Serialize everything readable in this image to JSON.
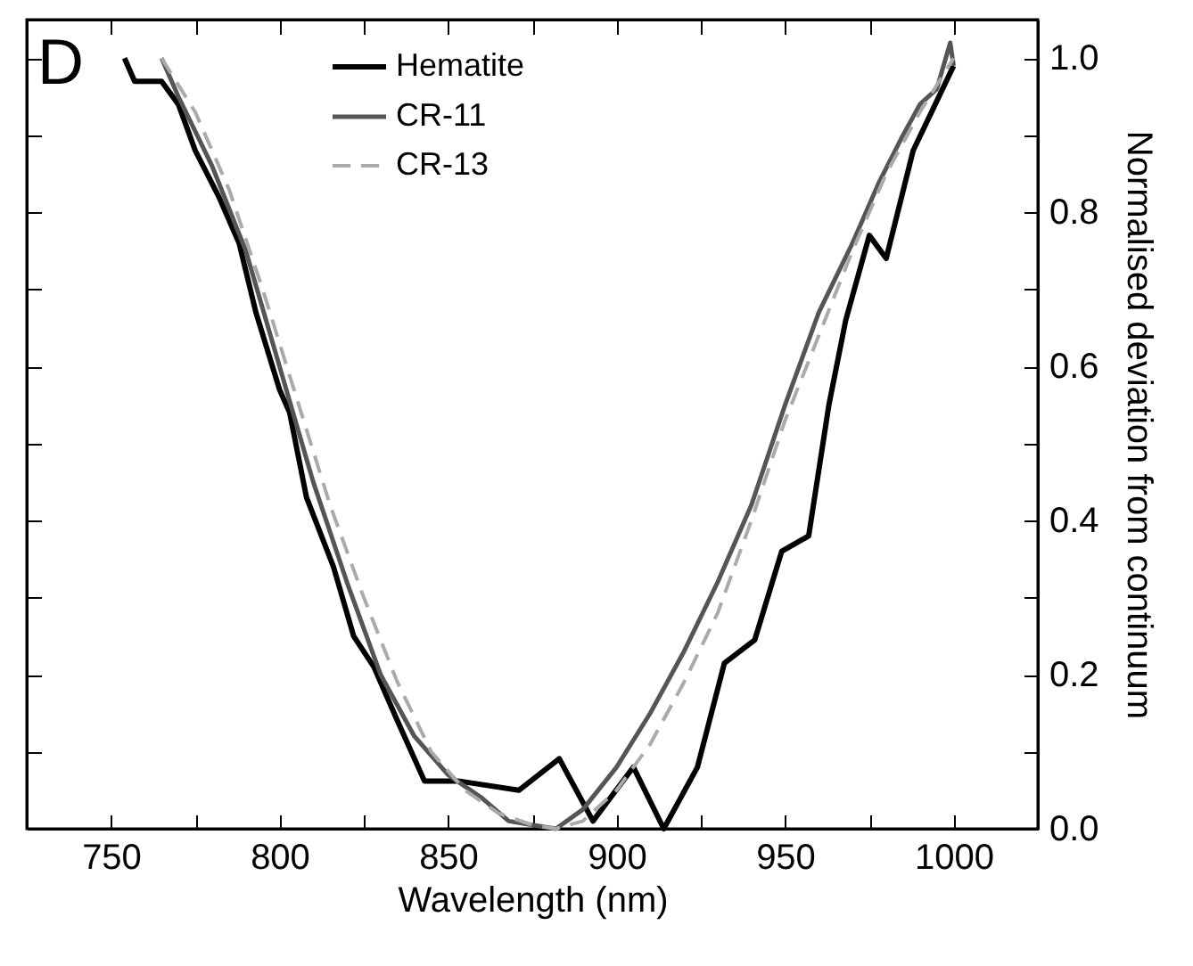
{
  "chart_data": {
    "type": "line",
    "xlabel": "Wavelength (nm)",
    "ylabel": "Normalised deviation from continuum",
    "annotations": [
      "D"
    ],
    "xlim": [
      725,
      1025
    ],
    "ylim": [
      0,
      1.05
    ],
    "xticks": [
      750,
      {
        "value": 775,
        "label": null
      },
      800,
      {
        "value": 825,
        "label": null
      },
      850,
      {
        "value": 875,
        "label": null
      },
      900,
      {
        "value": 925,
        "label": null
      },
      950,
      {
        "value": 975,
        "label": null
      },
      1000
    ],
    "yticks": [
      {
        "value": 0,
        "label": "0.0"
      },
      {
        "value": 0.1,
        "label": null
      },
      0.2,
      {
        "value": 0.3,
        "label": null
      },
      0.4,
      {
        "value": 0.5,
        "label": null
      },
      0.6,
      {
        "value": 0.7,
        "label": null
      },
      0.8,
      {
        "value": 0.9,
        "label": null
      },
      {
        "value": 1,
        "label": "1.0"
      }
    ],
    "legend": "top",
    "marker": "none",
    "series": [
      {
        "name": "Hematite",
        "color": "#000000",
        "line_style": "solid",
        "x": [
          754,
          757,
          765,
          770,
          775,
          782,
          788,
          793,
          800,
          803,
          808,
          816,
          822,
          828,
          835,
          843,
          853,
          871,
          883,
          893,
          905,
          914,
          924,
          932,
          941,
          949,
          957,
          963,
          968,
          975,
          980,
          988,
          1000
        ],
        "values": [
          1.0,
          0.97,
          0.97,
          0.94,
          0.88,
          0.82,
          0.76,
          0.67,
          0.57,
          0.54,
          0.43,
          0.34,
          0.25,
          0.21,
          0.14,
          0.062,
          0.062,
          0.05,
          0.091,
          0.01,
          0.08,
          0.0,
          0.08,
          0.215,
          0.245,
          0.36,
          0.38,
          0.55,
          0.66,
          0.77,
          0.74,
          0.88,
          0.99
        ]
      },
      {
        "name": "CR-11",
        "color": "#555555",
        "line_style": "solid",
        "x": [
          765,
          770,
          780,
          790,
          800,
          810,
          820,
          830,
          840,
          850,
          860,
          868,
          875,
          882,
          890,
          900,
          910,
          920,
          930,
          940,
          950,
          960,
          970,
          978,
          985,
          990,
          995,
          999,
          1000
        ],
        "values": [
          1.0,
          0.95,
          0.86,
          0.75,
          0.6,
          0.45,
          0.32,
          0.2,
          0.12,
          0.07,
          0.04,
          0.01,
          0.005,
          0.0,
          0.025,
          0.08,
          0.15,
          0.23,
          0.32,
          0.42,
          0.55,
          0.67,
          0.76,
          0.84,
          0.9,
          0.94,
          0.96,
          1.02,
          0.99
        ]
      },
      {
        "name": "CR-13",
        "color": "#aaaaaa",
        "line_style": "dashed",
        "x": [
          765,
          775,
          785,
          795,
          805,
          815,
          825,
          835,
          845,
          855,
          865,
          875,
          882,
          890,
          900,
          910,
          920,
          930,
          940,
          950,
          960,
          970,
          980,
          990,
          1000
        ],
        "values": [
          1.0,
          0.93,
          0.83,
          0.7,
          0.56,
          0.42,
          0.3,
          0.19,
          0.1,
          0.05,
          0.02,
          0.005,
          0.0,
          0.01,
          0.05,
          0.11,
          0.19,
          0.28,
          0.4,
          0.53,
          0.64,
          0.75,
          0.85,
          0.93,
          1.0
        ]
      }
    ]
  }
}
